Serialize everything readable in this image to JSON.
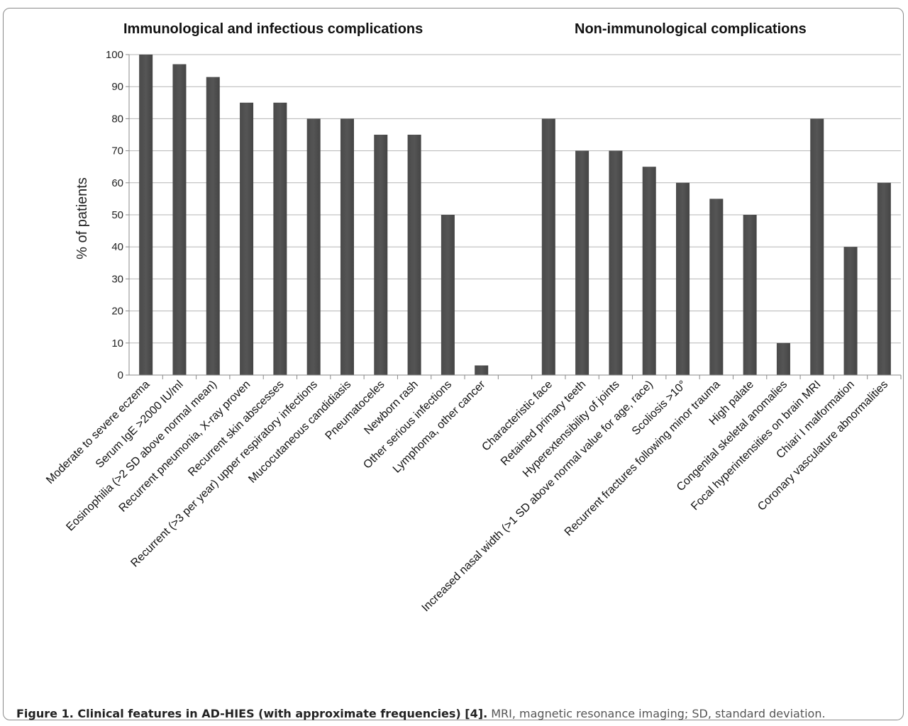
{
  "group_titles": {
    "left": "Immunological and infectious complications",
    "right": "Non-immunological complications"
  },
  "caption": {
    "bold": "Figure 1. Clinical features in AD-HIES (with approximate frequencies) [4].",
    "rest": " MRI, magnetic resonance imaging; SD, standard deviation."
  },
  "chart_data": {
    "type": "bar",
    "ylabel": "% of patients",
    "xlabel": "",
    "ylim": [
      0,
      100
    ],
    "yticks": [
      0,
      10,
      20,
      30,
      40,
      50,
      60,
      70,
      80,
      90,
      100
    ],
    "grid": true,
    "bar_color": "#555555",
    "categories": [
      "Moderate to severe eczema",
      "Serum IgE >2000 IU/ml",
      "Eosinophilia (>2 SD above normal mean)",
      "Recurrent pneumonia, X-ray proven",
      "Recurrent skin abscesses",
      "Recurrent (>3 per year) upper respiratory infections",
      "Mucocutaneous candidiasis",
      "Pneumatoceles",
      "Newborn rash",
      "Other serious infections",
      "Lymphoma, other cancer",
      "",
      "Characteristic face",
      "Retained primary teeth",
      "Hyperextensibility of joints",
      "Increased nasal width (>1 SD above normal value for age, race)",
      "Scoliosis >10°",
      "Recurrent fractures following minor trauma",
      "High palate",
      "Congenital skeletal anomalies",
      "Focal hyperintensities on brain MRI",
      "Chiari I malformation",
      "Coronary vasculature abnormalities"
    ],
    "values": [
      100,
      97,
      93,
      85,
      85,
      80,
      80,
      75,
      75,
      50,
      3,
      null,
      80,
      70,
      70,
      65,
      60,
      55,
      50,
      10,
      80,
      40,
      60
    ]
  }
}
